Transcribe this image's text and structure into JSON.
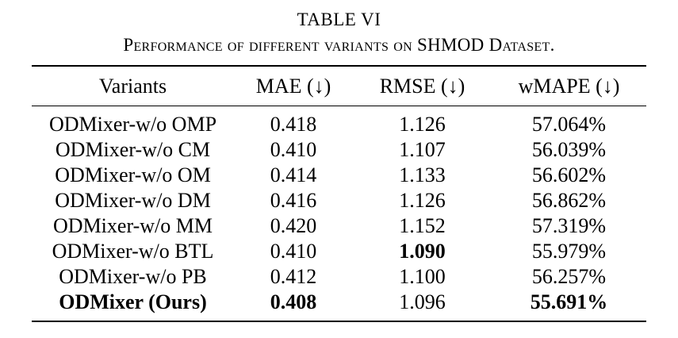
{
  "caption": {
    "label": "TABLE VI",
    "title": "Performance of different variants on SHMOD Dataset."
  },
  "table": {
    "columns": [
      "Variants",
      "MAE (↓)",
      "RMSE (↓)",
      "wMAPE (↓)"
    ],
    "rows": [
      {
        "variant": "ODMixer-w/o OMP",
        "mae": "0.418",
        "rmse": "1.126",
        "wmape": "57.064%",
        "bold": []
      },
      {
        "variant": "ODMixer-w/o CM",
        "mae": "0.410",
        "rmse": "1.107",
        "wmape": "56.039%",
        "bold": []
      },
      {
        "variant": "ODMixer-w/o OM",
        "mae": "0.414",
        "rmse": "1.133",
        "wmape": "56.602%",
        "bold": []
      },
      {
        "variant": "ODMixer-w/o DM",
        "mae": "0.416",
        "rmse": "1.126",
        "wmape": "56.862%",
        "bold": []
      },
      {
        "variant": "ODMixer-w/o MM",
        "mae": "0.420",
        "rmse": "1.152",
        "wmape": "57.319%",
        "bold": []
      },
      {
        "variant": "ODMixer-w/o BTL",
        "mae": "0.410",
        "rmse": "1.090",
        "wmape": "55.979%",
        "bold": [
          "rmse"
        ]
      },
      {
        "variant": "ODMixer-w/o PB",
        "mae": "0.412",
        "rmse": "1.100",
        "wmape": "56.257%",
        "bold": []
      },
      {
        "variant": "ODMixer (Ours)",
        "mae": "0.408",
        "rmse": "1.096",
        "wmape": "55.691%",
        "bold": [
          "variant",
          "mae",
          "wmape"
        ]
      }
    ]
  }
}
